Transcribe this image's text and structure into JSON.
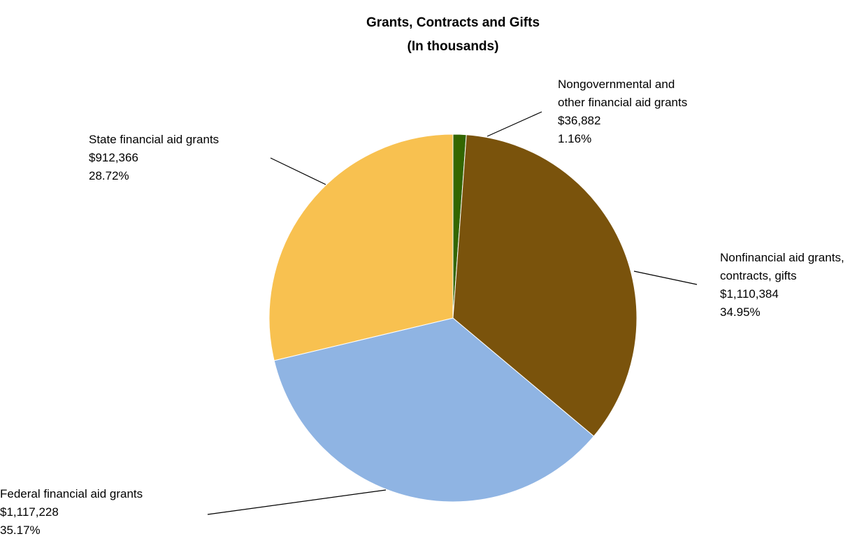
{
  "chart_data": {
    "type": "pie",
    "title": "Grants, Contracts and Gifts",
    "subtitle": "(In thousands)",
    "start_angle_deg": 90,
    "direction": "clockwise",
    "slices": [
      {
        "name": "Nongovernmental and other financial aid grants",
        "label_lines": [
          "Nongovernmental and",
          "other financial aid grants"
        ],
        "value": 36882,
        "value_label": "$36,882",
        "percent": 1.16,
        "percent_label": "1.16%",
        "color": "#336600"
      },
      {
        "name": "Nonfinancial aid grants, contracts, gifts",
        "label_lines": [
          "Nonfinancial aid grants,",
          "contracts, gifts"
        ],
        "value": 1110384,
        "value_label": "$1,110,384",
        "percent": 34.95,
        "percent_label": "34.95%",
        "color": "#7a530c"
      },
      {
        "name": "Federal financial aid grants",
        "label_lines": [
          "Federal financial aid grants"
        ],
        "value": 1117228,
        "value_label": "$1,117,228",
        "percent": 35.17,
        "percent_label": "35.17%",
        "color": "#8fb4e3"
      },
      {
        "name": "State financial aid grants",
        "label_lines": [
          "State financial aid grants"
        ],
        "value": 912366,
        "value_label": "$912,366",
        "percent": 28.72,
        "percent_label": "28.72%",
        "color": "#f8c150"
      }
    ]
  }
}
